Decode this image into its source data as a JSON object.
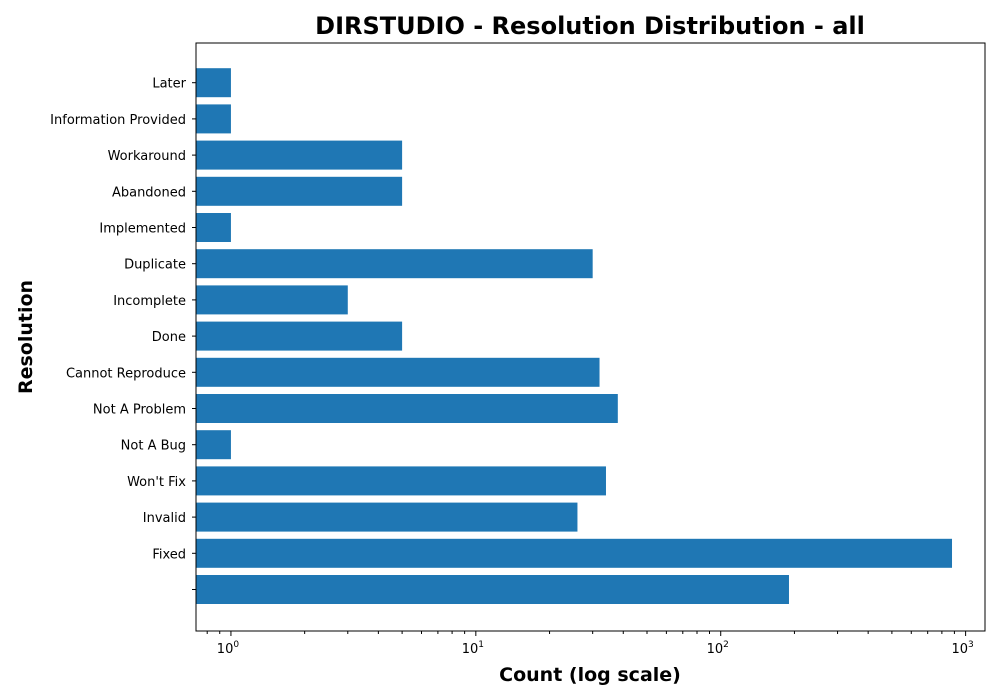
{
  "chart_data": {
    "type": "bar",
    "orientation": "horizontal",
    "title": "DIRSTUDIO - Resolution Distribution - all",
    "xlabel": "Count (log scale)",
    "ylabel": "Resolution",
    "x_scale": "log",
    "xlim": [
      0.72,
      1200
    ],
    "grid": false,
    "bar_color": "#1f77b4",
    "categories": [
      "",
      "Fixed",
      "Invalid",
      "Won't Fix",
      "Not A Bug",
      "Not A Problem",
      "Cannot Reproduce",
      "Done",
      "Incomplete",
      "Duplicate",
      "Implemented",
      "Abandoned",
      "Workaround",
      "Information Provided",
      "Later"
    ],
    "values": [
      190,
      880,
      26,
      34,
      1,
      38,
      32,
      5,
      3,
      30,
      1,
      5,
      5,
      1,
      1
    ],
    "x_ticks": [
      {
        "base": "10",
        "exp": "0",
        "value": 1
      },
      {
        "base": "10",
        "exp": "1",
        "value": 10
      },
      {
        "base": "10",
        "exp": "2",
        "value": 100
      },
      {
        "base": "10",
        "exp": "3",
        "value": 1000
      }
    ]
  }
}
